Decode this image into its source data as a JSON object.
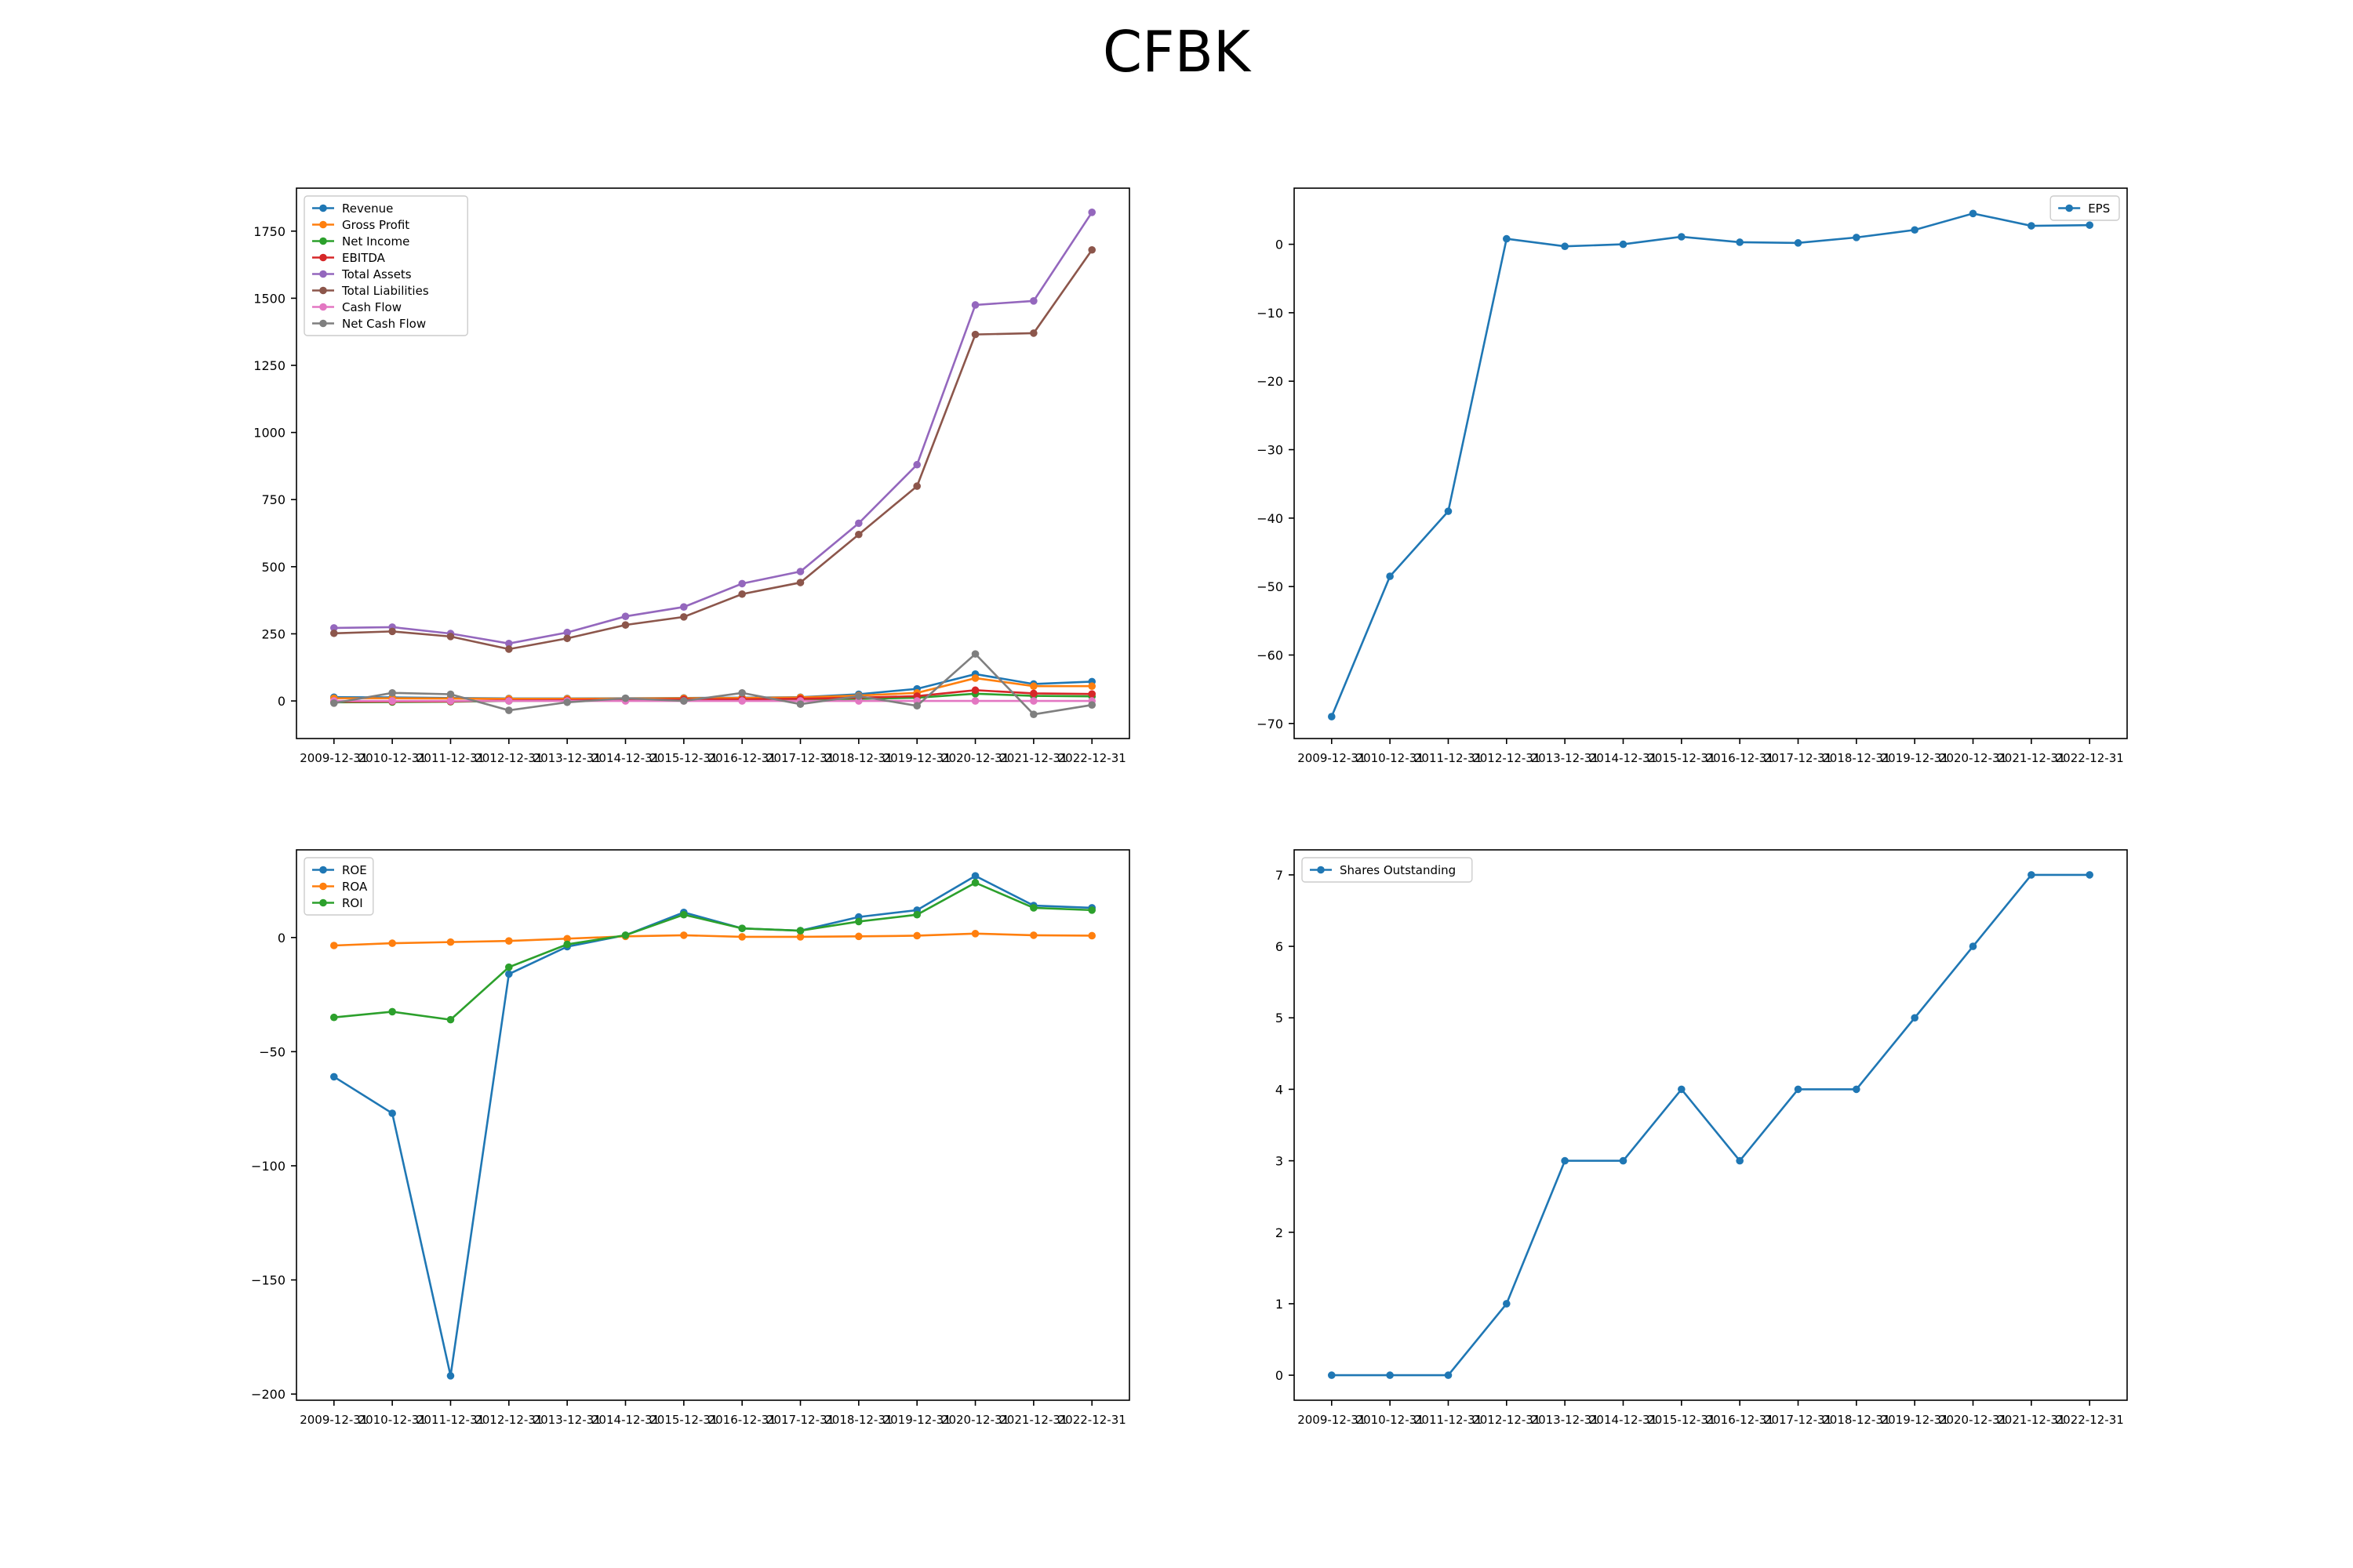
{
  "title": "CFBK",
  "colors": [
    "#1f77b4",
    "#ff7f0e",
    "#2ca02c",
    "#d62728",
    "#9467bd",
    "#8c564b",
    "#e377c2",
    "#7f7f7f"
  ],
  "chart_data": [
    {
      "id": "financials",
      "type": "line",
      "categories": [
        "2009-12-31",
        "2010-12-31",
        "2011-12-31",
        "2012-12-31",
        "2013-12-31",
        "2014-12-31",
        "2015-12-31",
        "2016-12-31",
        "2017-12-31",
        "2018-12-31",
        "2019-12-31",
        "2020-12-31",
        "2021-12-31",
        "2022-12-31"
      ],
      "ylim": [
        -140,
        1910
      ],
      "yticks": [
        0,
        250,
        500,
        750,
        1000,
        1250,
        1500,
        1750
      ],
      "legend": "top-left",
      "series": [
        {
          "name": "Revenue",
          "values": [
            14,
            13,
            11,
            9,
            9,
            10,
            11,
            12,
            14,
            25,
            45,
            100,
            63,
            72
          ]
        },
        {
          "name": "Gross Profit",
          "values": [
            10,
            10,
            9,
            8,
            8,
            9,
            10,
            11,
            13,
            20,
            30,
            85,
            55,
            55
          ]
        },
        {
          "name": "Net Income",
          "values": [
            -5,
            -4,
            -3,
            0,
            1,
            3,
            4,
            4,
            5,
            8,
            12,
            27,
            19,
            17
          ]
        },
        {
          "name": "EBITDA",
          "values": [
            -3,
            -2,
            -2,
            2,
            3,
            5,
            6,
            6,
            8,
            12,
            18,
            40,
            28,
            26
          ]
        },
        {
          "name": "Total Assets",
          "values": [
            272,
            275,
            251,
            214,
            255,
            315,
            350,
            437,
            482,
            662,
            880,
            1475,
            1490,
            1820
          ]
        },
        {
          "name": "Total Liabilities",
          "values": [
            252,
            259,
            240,
            193,
            233,
            283,
            313,
            398,
            441,
            620,
            800,
            1365,
            1370,
            1680
          ]
        },
        {
          "name": "Cash Flow",
          "values": [
            0,
            0,
            0,
            0,
            0,
            0,
            0,
            0,
            0,
            0,
            0,
            0,
            0,
            0
          ]
        },
        {
          "name": "Net Cash Flow",
          "values": [
            -8,
            30,
            25,
            -35,
            -5,
            10,
            0,
            30,
            -12,
            18,
            -18,
            175,
            -50,
            -15
          ]
        }
      ]
    },
    {
      "id": "eps",
      "type": "line",
      "categories": [
        "2009-12-31",
        "2010-12-31",
        "2011-12-31",
        "2012-12-31",
        "2013-12-31",
        "2014-12-31",
        "2015-12-31",
        "2016-12-31",
        "2017-12-31",
        "2018-12-31",
        "2019-12-31",
        "2020-12-31",
        "2021-12-31",
        "2022-12-31"
      ],
      "ylim": [
        -72.2,
        8.2
      ],
      "yticks": [
        0,
        -10,
        -20,
        -30,
        -40,
        -50,
        -60,
        -70
      ],
      "legend": "top-right",
      "series": [
        {
          "name": "EPS",
          "values": [
            -69,
            -48.5,
            -39,
            0.8,
            -0.3,
            0,
            1.1,
            0.3,
            0.2,
            1,
            2.1,
            4.5,
            2.7,
            2.8
          ]
        }
      ]
    },
    {
      "id": "ratios",
      "type": "line",
      "categories": [
        "2009-12-31",
        "2010-12-31",
        "2011-12-31",
        "2012-12-31",
        "2013-12-31",
        "2014-12-31",
        "2015-12-31",
        "2016-12-31",
        "2017-12-31",
        "2018-12-31",
        "2019-12-31",
        "2020-12-31",
        "2021-12-31",
        "2022-12-31"
      ],
      "ylim": [
        -202.7,
        38.4
      ],
      "yticks": [
        0,
        -50,
        -100,
        -150,
        -200
      ],
      "legend": "top-left",
      "series": [
        {
          "name": "ROE",
          "values": [
            -61,
            -77,
            -192,
            -16,
            -4,
            1,
            11,
            4,
            3,
            9,
            12,
            27,
            14,
            13
          ]
        },
        {
          "name": "ROA",
          "values": [
            -3.5,
            -2.5,
            -2,
            -1.5,
            -0.5,
            0.5,
            1,
            0.3,
            0.3,
            0.5,
            0.8,
            1.7,
            1,
            0.8
          ]
        },
        {
          "name": "ROI",
          "values": [
            -35,
            -32.5,
            -36,
            -13,
            -3,
            1,
            10,
            4,
            3,
            7,
            10,
            24,
            13,
            12
          ]
        }
      ]
    },
    {
      "id": "shares",
      "type": "line",
      "categories": [
        "2009-12-31",
        "2010-12-31",
        "2011-12-31",
        "2012-12-31",
        "2013-12-31",
        "2014-12-31",
        "2015-12-31",
        "2016-12-31",
        "2017-12-31",
        "2018-12-31",
        "2019-12-31",
        "2020-12-31",
        "2021-12-31",
        "2022-12-31"
      ],
      "ylim": [
        -0.35,
        7.35
      ],
      "yticks": [
        0,
        1,
        2,
        3,
        4,
        5,
        6,
        7
      ],
      "legend": "top-left",
      "series": [
        {
          "name": "Shares Outstanding",
          "values": [
            0,
            0,
            0,
            1,
            3,
            3,
            4,
            3,
            4,
            4,
            5,
            6,
            7,
            7
          ]
        }
      ]
    }
  ]
}
